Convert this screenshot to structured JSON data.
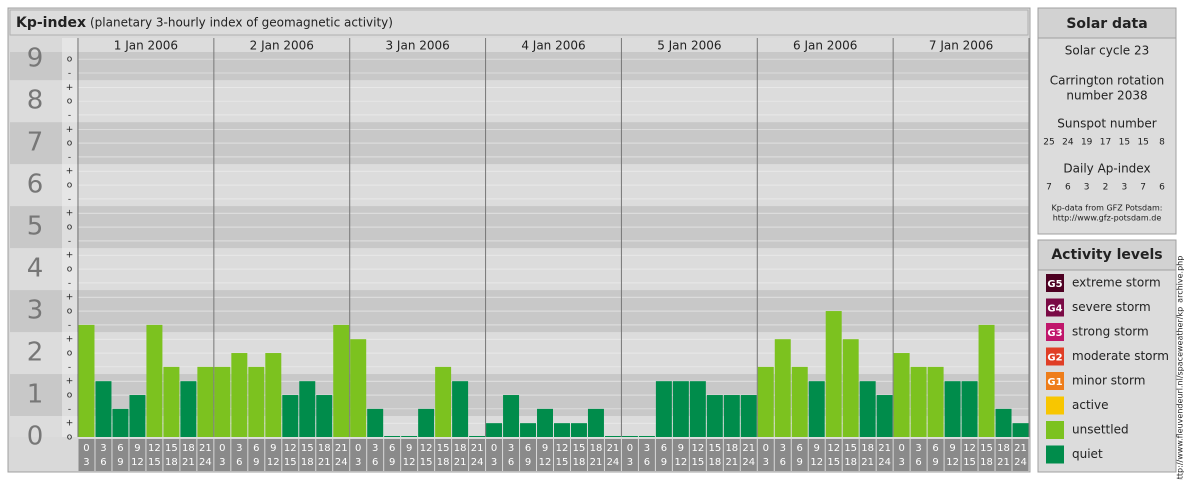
{
  "chart_data": {
    "type": "bar",
    "title": "Kp-index",
    "subtitle": "(planetary 3-hourly index of geomagnetic activity)",
    "categories": [
      "1 Jan 2006",
      "2 Jan 2006",
      "3 Jan 2006",
      "4 Jan 2006",
      "5 Jan 2006",
      "6 Jan 2006",
      "7 Jan 2006"
    ],
    "hours": [
      {
        "from": "0",
        "to": "3"
      },
      {
        "from": "3",
        "to": "6"
      },
      {
        "from": "6",
        "to": "9"
      },
      {
        "from": "9",
        "to": "12"
      },
      {
        "from": "12",
        "to": "15"
      },
      {
        "from": "15",
        "to": "18"
      },
      {
        "from": "18",
        "to": "21"
      },
      {
        "from": "21",
        "to": "24"
      }
    ],
    "values": [
      [
        2.67,
        1.33,
        0.67,
        1,
        2.67,
        1.67,
        1.33,
        1.67
      ],
      [
        1.67,
        2,
        1.67,
        2,
        1,
        1.33,
        1,
        2.67
      ],
      [
        2.33,
        0.67,
        0,
        0,
        0.67,
        1.67,
        1.33,
        0
      ],
      [
        0.33,
        1,
        0.33,
        0.67,
        0.33,
        0.33,
        0.67,
        0
      ],
      [
        0,
        0,
        1.33,
        1.33,
        1.33,
        1,
        1,
        1
      ],
      [
        1.67,
        2.33,
        1.67,
        1.33,
        3,
        2.33,
        1.33,
        1
      ],
      [
        2,
        1.67,
        1.67,
        1.33,
        1.33,
        2.67,
        0.67,
        0.33
      ]
    ],
    "colors": [
      [
        "#7cc21f",
        "#008c4b",
        "#008c4b",
        "#008c4b",
        "#7cc21f",
        "#7cc21f",
        "#008c4b",
        "#7cc21f"
      ],
      [
        "#7cc21f",
        "#7cc21f",
        "#7cc21f",
        "#7cc21f",
        "#008c4b",
        "#008c4b",
        "#008c4b",
        "#7cc21f"
      ],
      [
        "#7cc21f",
        "#008c4b",
        "#008c4b",
        "#008c4b",
        "#008c4b",
        "#7cc21f",
        "#008c4b",
        "#008c4b"
      ],
      [
        "#008c4b",
        "#008c4b",
        "#008c4b",
        "#008c4b",
        "#008c4b",
        "#008c4b",
        "#008c4b",
        "#008c4b"
      ],
      [
        "#008c4b",
        "#008c4b",
        "#008c4b",
        "#008c4b",
        "#008c4b",
        "#008c4b",
        "#008c4b",
        "#008c4b"
      ],
      [
        "#7cc21f",
        "#7cc21f",
        "#7cc21f",
        "#008c4b",
        "#7cc21f",
        "#7cc21f",
        "#008c4b",
        "#008c4b"
      ],
      [
        "#7cc21f",
        "#7cc21f",
        "#7cc21f",
        "#008c4b",
        "#008c4b",
        "#7cc21f",
        "#008c4b",
        "#008c4b"
      ]
    ],
    "ylim": [
      0,
      9.17
    ],
    "yticks": [
      0,
      1,
      2,
      3,
      4,
      5,
      6,
      7,
      8,
      9
    ],
    "ysubticks": [
      {
        "value": 0,
        "label": "o"
      },
      {
        "value": 0.33,
        "label": "+"
      },
      {
        "value": 0.67,
        "label": "-"
      },
      {
        "value": 1,
        "label": "o"
      },
      {
        "value": 1.33,
        "label": "+"
      },
      {
        "value": 1.67,
        "label": "-"
      },
      {
        "value": 2,
        "label": "o"
      },
      {
        "value": 2.33,
        "label": "+"
      },
      {
        "value": 2.67,
        "label": "-"
      },
      {
        "value": 3,
        "label": "o"
      },
      {
        "value": 3.33,
        "label": "+"
      },
      {
        "value": 3.67,
        "label": "-"
      },
      {
        "value": 4,
        "label": "o"
      },
      {
        "value": 4.33,
        "label": "+"
      },
      {
        "value": 4.67,
        "label": "-"
      },
      {
        "value": 5,
        "label": "o"
      },
      {
        "value": 5.33,
        "label": "+"
      },
      {
        "value": 5.67,
        "label": "-"
      },
      {
        "value": 6,
        "label": "o"
      },
      {
        "value": 6.33,
        "label": "+"
      },
      {
        "value": 6.67,
        "label": "-"
      },
      {
        "value": 7,
        "label": "o"
      },
      {
        "value": 7.33,
        "label": "+"
      },
      {
        "value": 7.67,
        "label": "-"
      },
      {
        "value": 8,
        "label": "o"
      },
      {
        "value": 8.33,
        "label": "+"
      },
      {
        "value": 8.67,
        "label": "-"
      },
      {
        "value": 9,
        "label": "o"
      }
    ],
    "grid": true
  },
  "solar_data": {
    "title": "Solar data",
    "cycle": "Solar cycle 23",
    "carrington": [
      "Carrington rotation",
      "number 2038"
    ],
    "sunspot_label": "Sunspot number",
    "sunspots": [
      "25",
      "24",
      "19",
      "17",
      "15",
      "15",
      "8"
    ],
    "ap_label": "Daily Ap-index",
    "ap": [
      "7",
      "6",
      "3",
      "2",
      "3",
      "7",
      "6"
    ],
    "credit": [
      "Kp-data from GFZ Potsdam:",
      "http://www.gfz-potsdam.de"
    ]
  },
  "activity_levels": {
    "title": "Activity levels",
    "levels": [
      {
        "code": "G5",
        "name": "extreme storm",
        "color": "#4d0022"
      },
      {
        "code": "G4",
        "name": "severe storm",
        "color": "#7a0a45"
      },
      {
        "code": "G3",
        "name": "strong storm",
        "color": "#c0166b"
      },
      {
        "code": "G2",
        "name": "moderate storm",
        "color": "#e03e26"
      },
      {
        "code": "G1",
        "name": "minor storm",
        "color": "#ee7d1a"
      },
      {
        "name": "active",
        "color": "#f8c600"
      },
      {
        "name": "unsettled",
        "color": "#7cc21f"
      },
      {
        "name": "quiet",
        "color": "#008c4b"
      }
    ]
  },
  "source_url": "http://www.fleuvendeurl.nl/spaceweather/kp_archive.php"
}
